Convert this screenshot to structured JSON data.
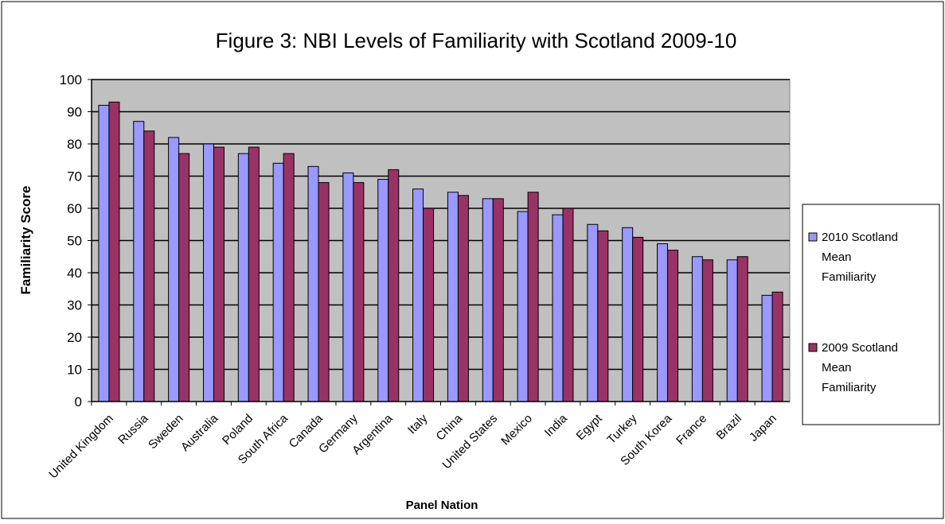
{
  "chart_data": {
    "type": "bar",
    "title": "Figure 3: NBI Levels of Familiarity with Scotland 2009-10",
    "xlabel": "Panel Nation",
    "ylabel": "Familiarity Score",
    "ylim": [
      0,
      100
    ],
    "yticks": [
      "0",
      "10",
      "20",
      "30",
      "40",
      "50",
      "60",
      "70",
      "80",
      "90",
      "100"
    ],
    "grid": true,
    "legend_position": "right",
    "categories": [
      "United Kingdom",
      "Russia",
      "Sweden",
      "Australia",
      "Poland",
      "South Africa",
      "Canada",
      "Germany",
      "Argentina",
      "Italy",
      "China",
      "United States",
      "Mexico",
      "India",
      "Egypt",
      "Turkey",
      "South Korea",
      "France",
      "Brazil",
      "Japan"
    ],
    "series": [
      {
        "name": "2010 Scotland Mean Familiarity",
        "legend_lines": [
          "2010 Scotland",
          "Mean",
          "Familiarity"
        ],
        "color": "#9999ff",
        "values": [
          92,
          87,
          82,
          80,
          77,
          74,
          73,
          71,
          69,
          66,
          65,
          63,
          59,
          58,
          55,
          54,
          49,
          45,
          44,
          33
        ]
      },
      {
        "name": "2009 Scotland Mean Familiarity",
        "legend_lines": [
          "2009 Scotland",
          "Mean",
          "Familiarity"
        ],
        "color": "#993366",
        "values": [
          93,
          84,
          77,
          79,
          79,
          77,
          68,
          68,
          72,
          60,
          64,
          63,
          65,
          60,
          53,
          51,
          47,
          44,
          45,
          34
        ]
      }
    ],
    "plot_background": "#c0c0c0"
  }
}
